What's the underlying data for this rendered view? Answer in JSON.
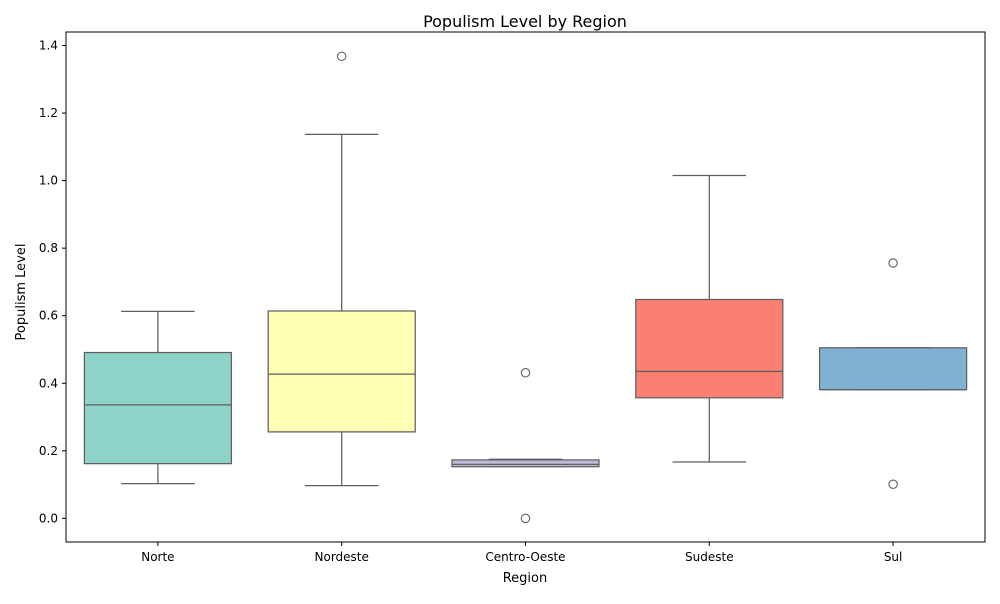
{
  "chart_data": {
    "type": "box",
    "title": "Populism Level by Region",
    "xlabel": "Region",
    "ylabel": "Populism Level",
    "ylim": [
      -0.07,
      1.44
    ],
    "yticks": [
      "0.0",
      "0.2",
      "0.4",
      "0.6",
      "0.8",
      "1.0",
      "1.2",
      "1.4"
    ],
    "grid": false,
    "categories": [
      "Norte",
      "Nordeste",
      "Centro-Oeste",
      "Sudeste",
      "Sul"
    ],
    "series": [
      {
        "category": "Norte",
        "whisker_low": 0.103,
        "q1": 0.162,
        "median": 0.336,
        "q3": 0.491,
        "whisker_high": 0.613,
        "outliers": [],
        "color": "#8dd3c7"
      },
      {
        "category": "Nordeste",
        "whisker_low": 0.097,
        "q1": 0.256,
        "median": 0.427,
        "q3": 0.614,
        "whisker_high": 1.137,
        "outliers": [
          1.368
        ],
        "color": "#ffffb3"
      },
      {
        "category": "Centro-Oeste",
        "whisker_low": 0.153,
        "q1": 0.153,
        "median": 0.16,
        "q3": 0.173,
        "whisker_high": 0.175,
        "outliers": [
          0.431,
          0.0
        ],
        "color": "#bebada"
      },
      {
        "category": "Sudeste",
        "whisker_low": 0.167,
        "q1": 0.357,
        "median": 0.435,
        "q3": 0.648,
        "whisker_high": 1.015,
        "outliers": [],
        "color": "#fb8072"
      },
      {
        "category": "Sul",
        "whisker_low": 0.381,
        "q1": 0.381,
        "median": 0.381,
        "q3": 0.505,
        "whisker_high": 0.505,
        "outliers": [
          0.756,
          0.101
        ],
        "color": "#80b1d3"
      }
    ]
  }
}
